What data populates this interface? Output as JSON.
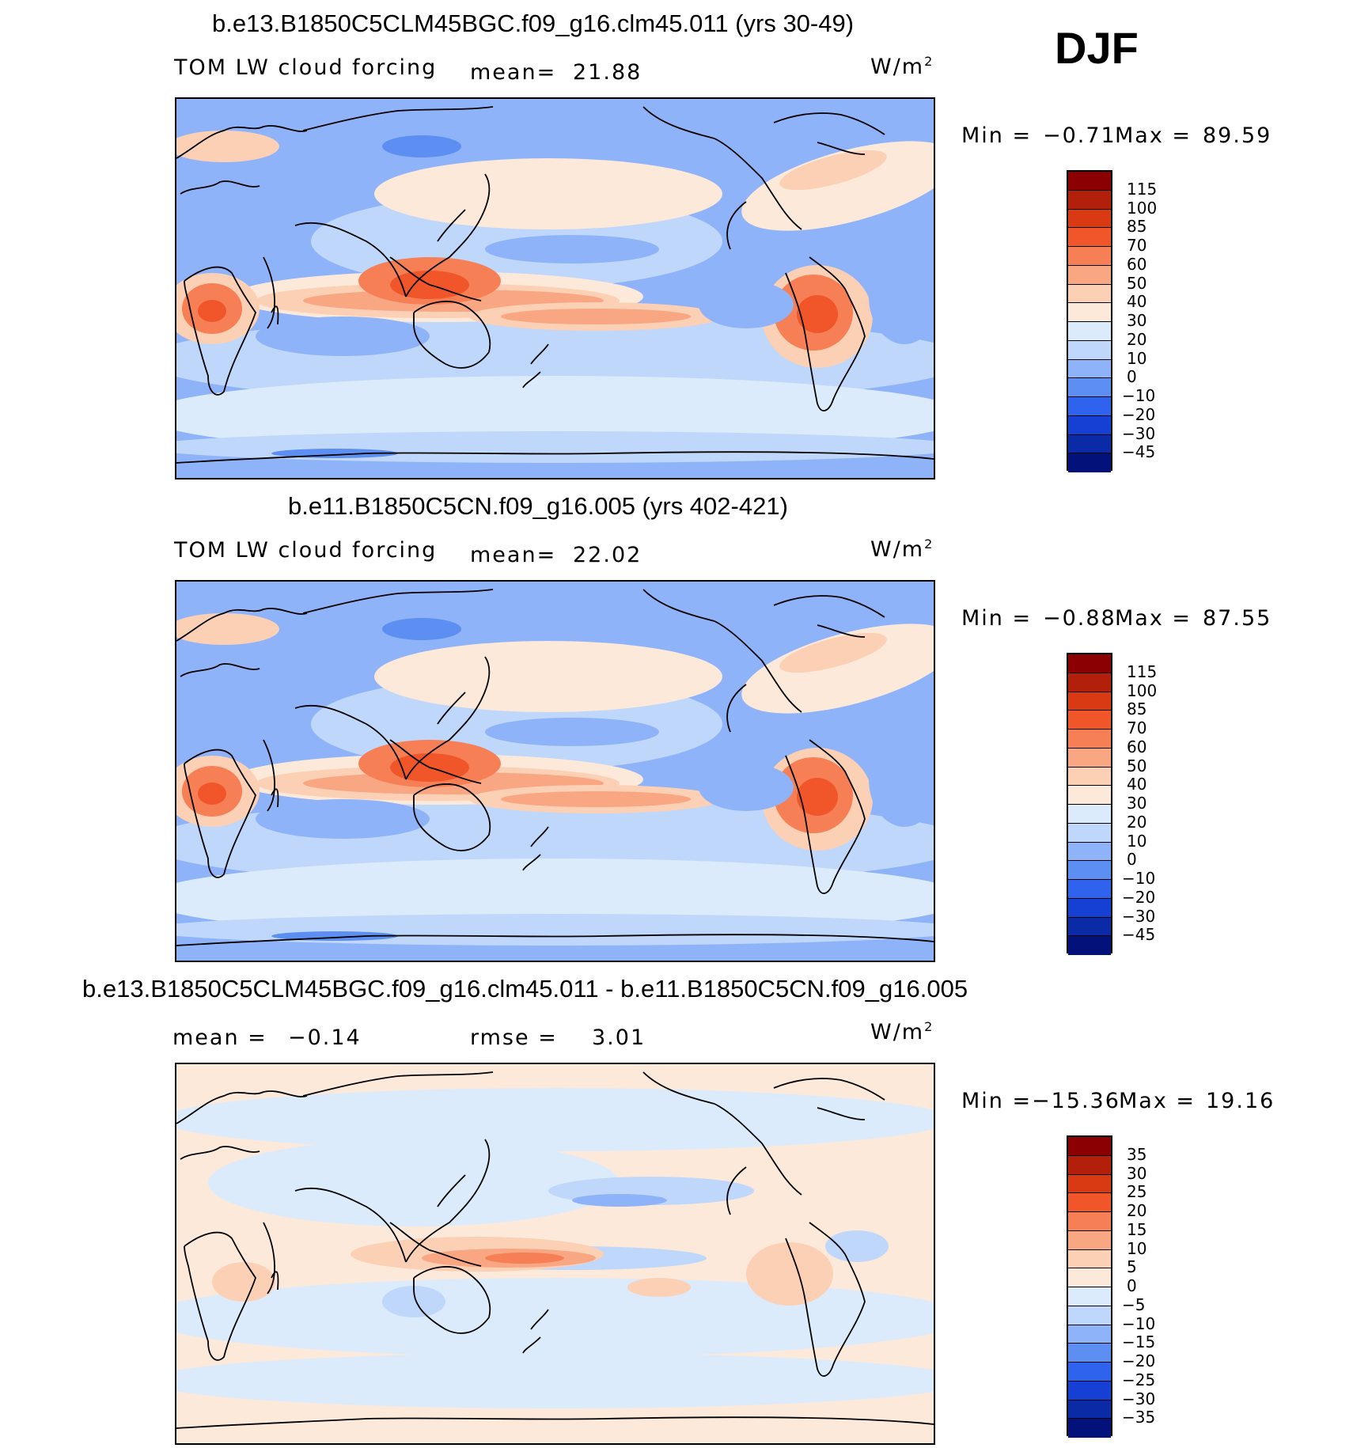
{
  "season": "DJF",
  "panels": [
    {
      "title": "b.e13.B1850C5CLM45BGC.f09_g16.clm45.011 (yrs 30-49)",
      "variable": "TOM LW cloud forcing",
      "mean_label": "mean=",
      "mean_value": "21.88",
      "units": "W/m",
      "units_sup": "2",
      "min_label": "Min  =",
      "min_value": "−0.71",
      "max_label": "Max  =",
      "max_value": "89.59",
      "colorbar": {
        "labels": [
          "115",
          "100",
          "85",
          "70",
          "60",
          "50",
          "40",
          "30",
          "20",
          "10",
          "0",
          "−10",
          "−20",
          "−30",
          "−45"
        ],
        "colors": [
          "#8b0000",
          "#b21f0b",
          "#d93a13",
          "#f0562a",
          "#f67f55",
          "#f9a683",
          "#fcd0b5",
          "#fde9da",
          "#dcebfb",
          "#bfd7fb",
          "#8fb3f8",
          "#5d8ef2",
          "#2f63ee",
          "#1540d3",
          "#0a2aa6",
          "#02127a"
        ]
      },
      "map_style": "full"
    },
    {
      "title": "b.e11.B1850C5CN.f09_g16.005 (yrs 402-421)",
      "variable": "TOM LW cloud forcing",
      "mean_label": "mean=",
      "mean_value": "22.02",
      "units": "W/m",
      "units_sup": "2",
      "min_label": "Min  =",
      "min_value": "−0.88",
      "max_label": "Max  =",
      "max_value": "87.55",
      "colorbar": {
        "labels": [
          "115",
          "100",
          "85",
          "70",
          "60",
          "50",
          "40",
          "30",
          "20",
          "10",
          "0",
          "−10",
          "−20",
          "−30",
          "−45"
        ],
        "colors": [
          "#8b0000",
          "#b21f0b",
          "#d93a13",
          "#f0562a",
          "#f67f55",
          "#f9a683",
          "#fcd0b5",
          "#fde9da",
          "#dcebfb",
          "#bfd7fb",
          "#8fb3f8",
          "#5d8ef2",
          "#2f63ee",
          "#1540d3",
          "#0a2aa6",
          "#02127a"
        ]
      },
      "map_style": "full"
    },
    {
      "title": "b.e13.B1850C5CLM45BGC.f09_g16.clm45.011 - b.e11.B1850C5CN.f09_g16.005",
      "variable": "",
      "mean_label": "mean  =",
      "mean_value": "−0.14",
      "rmse_label": "rmse  =",
      "rmse_value": "3.01",
      "units": "W/m",
      "units_sup": "2",
      "min_label": "Min  =",
      "min_value": "−15.36",
      "max_label": "Max  =",
      "max_value": "19.16",
      "colorbar": {
        "labels": [
          "35",
          "30",
          "25",
          "20",
          "15",
          "10",
          "5",
          "0",
          "−5",
          "−10",
          "−15",
          "−20",
          "−25",
          "−30",
          "−35"
        ],
        "colors": [
          "#8b0000",
          "#b21f0b",
          "#d93a13",
          "#f0562a",
          "#f67f55",
          "#f9a683",
          "#fcd0b5",
          "#fde9da",
          "#dcebfb",
          "#bfd7fb",
          "#8fb3f8",
          "#5d8ef2",
          "#2f63ee",
          "#1540d3",
          "#0a2aa6",
          "#02127a"
        ]
      },
      "map_style": "diff"
    }
  ]
}
